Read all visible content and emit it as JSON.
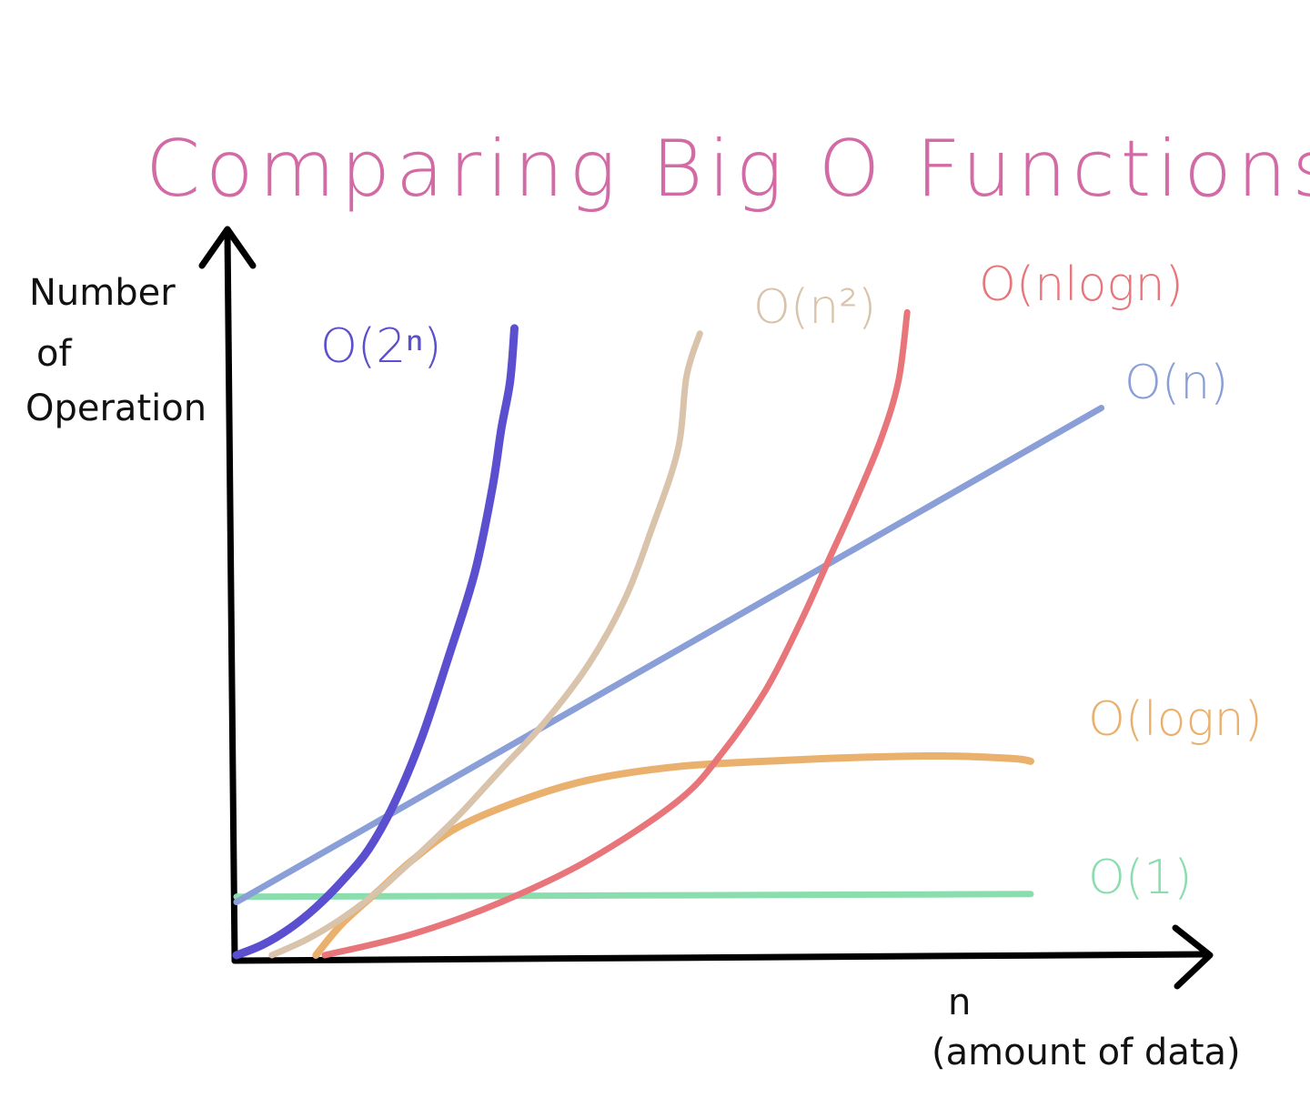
{
  "chart_data": {
    "type": "line",
    "title": "Comparing Big O Functions",
    "ylabel": [
      "Number",
      "of",
      "Operation"
    ],
    "xlabel": [
      "n",
      "(amount of data)"
    ],
    "grid": false,
    "legend": "labels at line ends",
    "series": [
      {
        "key": "exp",
        "name": "O(2ⁿ)",
        "color": "#5B4FD0",
        "width": 9,
        "points": [
          [
            0,
            0
          ],
          [
            3,
            2
          ],
          [
            6,
            5
          ],
          [
            9,
            9
          ],
          [
            12,
            14
          ],
          [
            15,
            20
          ],
          [
            18,
            29
          ],
          [
            21,
            41
          ],
          [
            24,
            56
          ],
          [
            27,
            72
          ],
          [
            29,
            88
          ],
          [
            30,
            99
          ],
          [
            31,
            108
          ],
          [
            31.5,
            118
          ]
        ]
      },
      {
        "key": "quad",
        "name": "O(n²)",
        "color": "#D9C3AA",
        "width": 7,
        "points": [
          [
            4,
            0
          ],
          [
            8,
            3
          ],
          [
            12,
            7
          ],
          [
            16,
            12
          ],
          [
            20,
            18
          ],
          [
            25,
            26
          ],
          [
            30,
            35
          ],
          [
            35,
            44
          ],
          [
            40,
            55
          ],
          [
            44,
            67
          ],
          [
            47,
            80
          ],
          [
            50,
            95
          ],
          [
            51,
            109
          ],
          [
            52.5,
            117
          ]
        ]
      },
      {
        "key": "nlogn",
        "name": "O(nlogn)",
        "color": "#E8757A",
        "width": 7,
        "points": [
          [
            10,
            0
          ],
          [
            20,
            4
          ],
          [
            30,
            10
          ],
          [
            40,
            18
          ],
          [
            50,
            29
          ],
          [
            55,
            38
          ],
          [
            60,
            50
          ],
          [
            64,
            63
          ],
          [
            67,
            74
          ],
          [
            70,
            85
          ],
          [
            73,
            97
          ],
          [
            75,
            108
          ],
          [
            76,
            121
          ]
        ]
      },
      {
        "key": "linear",
        "name": "O(n)",
        "color": "#8A9FD8",
        "width": 7,
        "points": [
          [
            0,
            10
          ],
          [
            98,
            103
          ]
        ]
      },
      {
        "key": "log",
        "name": "O(logn)",
        "color": "#E9B06E",
        "width": 8,
        "points": [
          [
            9,
            0
          ],
          [
            12,
            6
          ],
          [
            16,
            12
          ],
          [
            20,
            18
          ],
          [
            25,
            24
          ],
          [
            32,
            29
          ],
          [
            40,
            33
          ],
          [
            50,
            35.5
          ],
          [
            60,
            36.5
          ],
          [
            70,
            37.2
          ],
          [
            80,
            37.5
          ],
          [
            88,
            37
          ],
          [
            90,
            36.5
          ]
        ]
      },
      {
        "key": "const",
        "name": "O(1)",
        "color": "#8ADDAD",
        "width": 7,
        "points": [
          [
            0,
            11
          ],
          [
            90,
            11.5
          ]
        ]
      }
    ],
    "xlim": [
      0,
      100
    ],
    "ylim": [
      0,
      125
    ]
  }
}
